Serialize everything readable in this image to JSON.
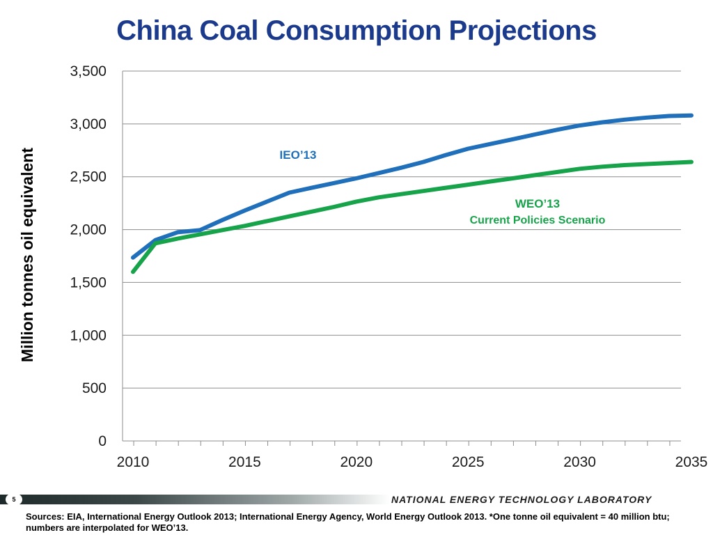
{
  "slide": {
    "title": "China Coal Consumption Projections",
    "page_number": "5",
    "lab_name": "NATIONAL ENERGY TECHNOLOGY LABORATORY",
    "sources": "Sources: EIA, International Energy Outlook 2013; International Energy Agency, World Energy Outlook 2013. *One tonne oil equivalent = 40 million btu; numbers are interpolated for WEO’13."
  },
  "chart_data": {
    "type": "line",
    "title": "China Coal Consumption Projections",
    "xlabel": "",
    "ylabel": "Million tonnes oil equivalent",
    "xlim": [
      2010,
      2035
    ],
    "ylim": [
      0,
      3500
    ],
    "x_ticks": [
      "2010",
      "2015",
      "2020",
      "2025",
      "2030",
      "2035"
    ],
    "y_ticks": [
      "0",
      "500",
      "1,000",
      "1,500",
      "2,000",
      "2,500",
      "3,000",
      "3,500"
    ],
    "grid": true,
    "x": [
      2010,
      2011,
      2012,
      2013,
      2014,
      2015,
      2016,
      2017,
      2018,
      2019,
      2020,
      2021,
      2022,
      2023,
      2024,
      2025,
      2026,
      2027,
      2028,
      2029,
      2030,
      2031,
      2032,
      2033,
      2034,
      2035
    ],
    "series": [
      {
        "name": "IEO’13",
        "color": "#1f6fba",
        "values": [
          1735,
          1900,
          1975,
          1995,
          2090,
          2180,
          2265,
          2350,
          2395,
          2440,
          2485,
          2535,
          2585,
          2640,
          2705,
          2765,
          2810,
          2855,
          2900,
          2945,
          2985,
          3015,
          3040,
          3060,
          3075,
          3080
        ]
      },
      {
        "name": "WEO’13",
        "color": "#17a34a",
        "values": [
          1600,
          1870,
          1915,
          1955,
          1995,
          2035,
          2080,
          2125,
          2170,
          2215,
          2265,
          2305,
          2335,
          2365,
          2395,
          2425,
          2455,
          2485,
          2515,
          2545,
          2575,
          2595,
          2610,
          2620,
          2630,
          2640
        ]
      }
    ],
    "annotations": [
      {
        "text": "IEO’13",
        "color": "#1f6fba"
      },
      {
        "text": "WEO’13",
        "color": "#17a34a"
      },
      {
        "text": "Current Policies Scenario",
        "color": "#17a34a"
      }
    ]
  }
}
